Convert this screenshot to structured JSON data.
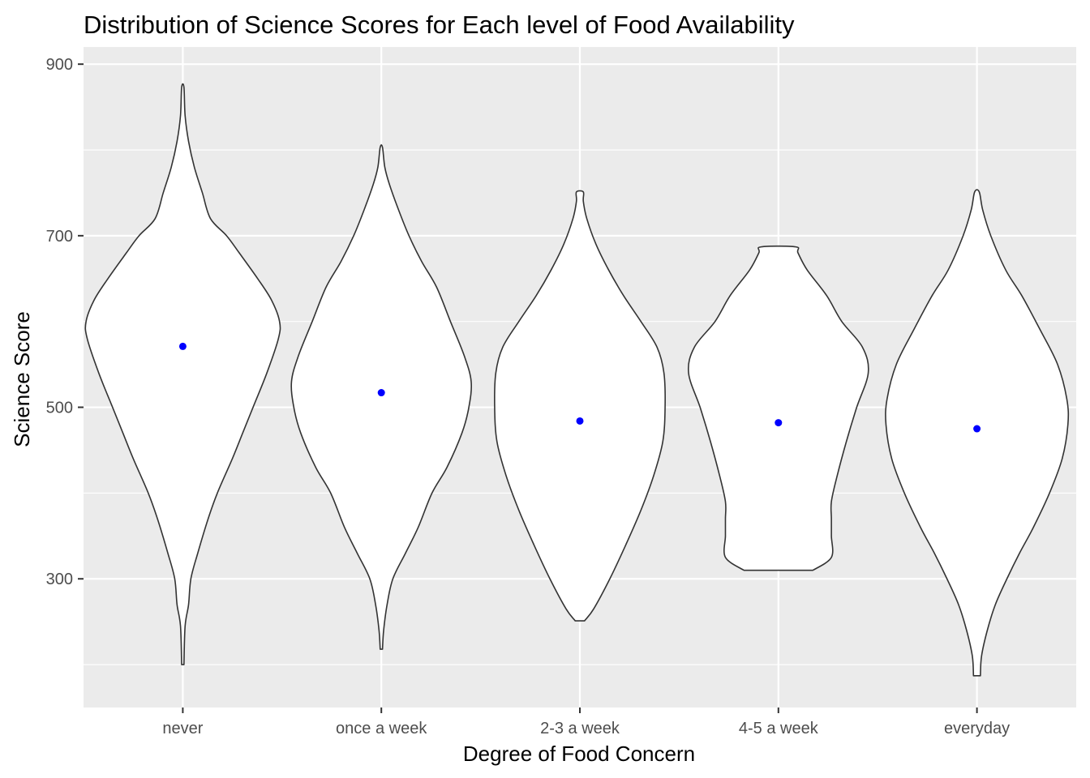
{
  "chart_data": {
    "type": "violin",
    "title": "Distribution of Science Scores for Each level of Food Availability",
    "xlabel": "Degree of Food Concern",
    "ylabel": "Science Score",
    "ylim": [
      150,
      920
    ],
    "yticks": [
      300,
      500,
      700,
      900
    ],
    "grid": true,
    "legend": "none",
    "colors": {
      "panel": "#EBEBEB",
      "grid": "#FFFFFF",
      "violin_fill": "#FFFFFF",
      "violin_outline": "#333333",
      "mean_point": "#0000FF",
      "tick_label": "#4D4D4D"
    },
    "categories": [
      "never",
      "once a week",
      "2-3 a week",
      "4-5 a week",
      "everyday"
    ],
    "series": [
      {
        "category": "never",
        "mean": 571,
        "min": 200,
        "max": 873,
        "density": [
          [
            200,
            0.01
          ],
          [
            245,
            0.02
          ],
          [
            270,
            0.05
          ],
          [
            300,
            0.07
          ],
          [
            330,
            0.13
          ],
          [
            370,
            0.22
          ],
          [
            400,
            0.3
          ],
          [
            440,
            0.43
          ],
          [
            470,
            0.52
          ],
          [
            500,
            0.61
          ],
          [
            540,
            0.73
          ],
          [
            580,
            0.83
          ],
          [
            600,
            0.84
          ],
          [
            625,
            0.77
          ],
          [
            650,
            0.65
          ],
          [
            680,
            0.49
          ],
          [
            700,
            0.38
          ],
          [
            720,
            0.24
          ],
          [
            750,
            0.17
          ],
          [
            780,
            0.1
          ],
          [
            810,
            0.05
          ],
          [
            840,
            0.02
          ],
          [
            873,
            0.01
          ]
        ]
      },
      {
        "category": "once a week",
        "mean": 517,
        "min": 218,
        "max": 803,
        "density": [
          [
            218,
            0.01
          ],
          [
            240,
            0.02
          ],
          [
            270,
            0.05
          ],
          [
            300,
            0.1
          ],
          [
            330,
            0.21
          ],
          [
            360,
            0.32
          ],
          [
            400,
            0.44
          ],
          [
            430,
            0.57
          ],
          [
            470,
            0.7
          ],
          [
            500,
            0.76
          ],
          [
            530,
            0.78
          ],
          [
            560,
            0.72
          ],
          [
            600,
            0.6
          ],
          [
            640,
            0.48
          ],
          [
            670,
            0.35
          ],
          [
            700,
            0.24
          ],
          [
            730,
            0.15
          ],
          [
            760,
            0.07
          ],
          [
            780,
            0.03
          ],
          [
            803,
            0.01
          ]
        ]
      },
      {
        "category": "2-3 a week",
        "mean": 484,
        "min": 251,
        "max": 751,
        "density": [
          [
            251,
            0.04
          ],
          [
            265,
            0.12
          ],
          [
            300,
            0.26
          ],
          [
            340,
            0.4
          ],
          [
            380,
            0.53
          ],
          [
            420,
            0.64
          ],
          [
            460,
            0.72
          ],
          [
            500,
            0.74
          ],
          [
            540,
            0.73
          ],
          [
            570,
            0.67
          ],
          [
            600,
            0.53
          ],
          [
            630,
            0.38
          ],
          [
            660,
            0.25
          ],
          [
            690,
            0.14
          ],
          [
            720,
            0.06
          ],
          [
            740,
            0.03
          ],
          [
            751,
            0.03
          ]
        ]
      },
      {
        "category": "4-5 a week",
        "mean": 482,
        "min": 310,
        "max": 687,
        "density": [
          [
            310,
            0.3
          ],
          [
            325,
            0.46
          ],
          [
            350,
            0.46
          ],
          [
            370,
            0.46
          ],
          [
            390,
            0.46
          ],
          [
            420,
            0.51
          ],
          [
            460,
            0.59
          ],
          [
            500,
            0.68
          ],
          [
            540,
            0.78
          ],
          [
            570,
            0.73
          ],
          [
            600,
            0.55
          ],
          [
            630,
            0.42
          ],
          [
            660,
            0.25
          ],
          [
            680,
            0.17
          ],
          [
            687,
            0.15
          ]
        ]
      },
      {
        "category": "everyday",
        "mean": 475,
        "min": 187,
        "max": 751,
        "density": [
          [
            187,
            0.03
          ],
          [
            210,
            0.04
          ],
          [
            240,
            0.09
          ],
          [
            270,
            0.16
          ],
          [
            300,
            0.26
          ],
          [
            330,
            0.37
          ],
          [
            360,
            0.49
          ],
          [
            400,
            0.63
          ],
          [
            440,
            0.74
          ],
          [
            480,
            0.79
          ],
          [
            510,
            0.78
          ],
          [
            550,
            0.7
          ],
          [
            590,
            0.55
          ],
          [
            630,
            0.39
          ],
          [
            660,
            0.25
          ],
          [
            700,
            0.12
          ],
          [
            730,
            0.05
          ],
          [
            751,
            0.02
          ]
        ]
      }
    ]
  }
}
